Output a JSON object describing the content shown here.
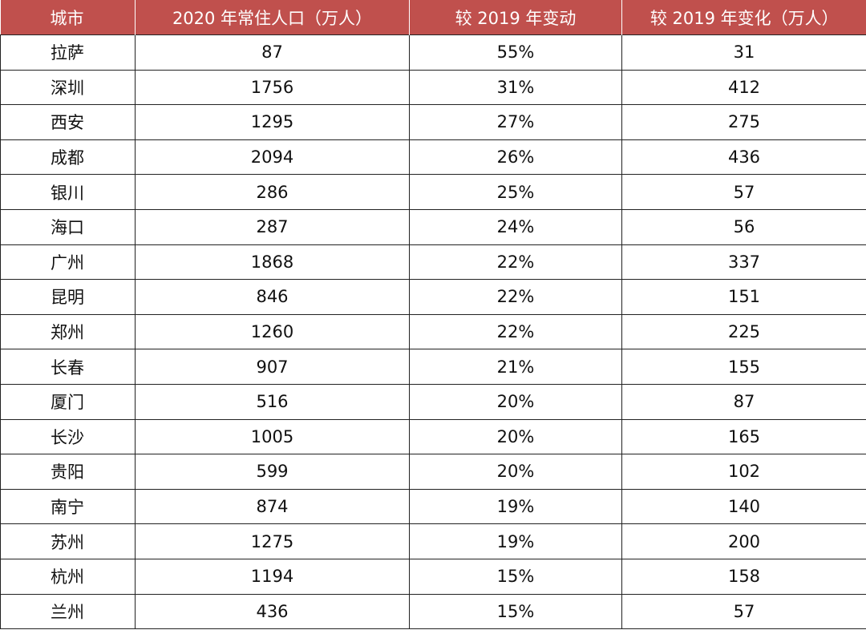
{
  "table": {
    "header": [
      "城市",
      "2020 年常住人口（万人）",
      "较 2019 年变动",
      "较 2019 年变化（万人）"
    ],
    "rows": [
      [
        "拉萨",
        "87",
        "55%",
        "31"
      ],
      [
        "深圳",
        "1756",
        "31%",
        "412"
      ],
      [
        "西安",
        "1295",
        "27%",
        "275"
      ],
      [
        "成都",
        "2094",
        "26%",
        "436"
      ],
      [
        "银川",
        "286",
        "25%",
        "57"
      ],
      [
        "海口",
        "287",
        "24%",
        "56"
      ],
      [
        "广州",
        "1868",
        "22%",
        "337"
      ],
      [
        "昆明",
        "846",
        "22%",
        "151"
      ],
      [
        "郑州",
        "1260",
        "22%",
        "225"
      ],
      [
        "长春",
        "907",
        "21%",
        "155"
      ],
      [
        "厦门",
        "516",
        "20%",
        "87"
      ],
      [
        "长沙",
        "1005",
        "20%",
        "165"
      ],
      [
        "贵阳",
        "599",
        "20%",
        "102"
      ],
      [
        "南宁",
        "874",
        "19%",
        "140"
      ],
      [
        "苏州",
        "1275",
        "19%",
        "200"
      ],
      [
        "杭州",
        "1194",
        "15%",
        "158"
      ],
      [
        "兰州",
        "436",
        "15%",
        "57"
      ]
    ]
  }
}
